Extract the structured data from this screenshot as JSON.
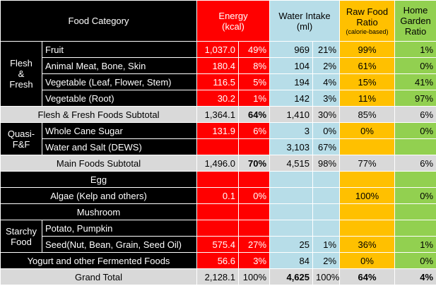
{
  "header": {
    "food_category": "Food Category",
    "energy": "Energy",
    "energy_unit": "(kcal)",
    "water": "Water Intake",
    "water_unit": "(ml)",
    "raw_food": "Raw Food",
    "ratio": "Ratio",
    "raw_note": "(calorie-based)",
    "home": "Home",
    "garden": "Garden",
    "garden_ratio": "Ratio"
  },
  "groups": {
    "flesh_line1": "Flesh",
    "flesh_line2": "&",
    "flesh_line3": "Fresh",
    "quasi_line1": "Quasi-",
    "quasi_line2": "F&F",
    "starchy_line1": "Starchy",
    "starchy_line2": "Food"
  },
  "rows": {
    "fruit": {
      "label": "Fruit",
      "energy": "1,037.0",
      "energy_pct": "49%",
      "water": "969",
      "water_pct": "21%",
      "raw": "99%",
      "garden": "1%"
    },
    "meat": {
      "label": "Animal Meat, Bone, Skin",
      "energy": "180.4",
      "energy_pct": "8%",
      "water": "104",
      "water_pct": "2%",
      "raw": "61%",
      "garden": "0%"
    },
    "veg_leaf": {
      "label": "Vegetable (Leaf, Flower, Stem)",
      "energy": "116.5",
      "energy_pct": "5%",
      "water": "194",
      "water_pct": "4%",
      "raw": "15%",
      "garden": "41%"
    },
    "veg_root": {
      "label": "Vegetable (Root)",
      "energy": "30.2",
      "energy_pct": "1%",
      "water": "142",
      "water_pct": "3%",
      "raw": "11%",
      "garden": "97%"
    },
    "flesh_subtotal": {
      "label": "Flesh & Fresh Foods Subtotal",
      "energy": "1,364.1",
      "energy_pct": "64%",
      "water": "1,410",
      "water_pct": "30%",
      "raw": "85%",
      "garden": "6%"
    },
    "sugar": {
      "label": "Whole Cane Sugar",
      "energy": "131.9",
      "energy_pct": "6%",
      "water": "3",
      "water_pct": "0%",
      "raw": "0%",
      "garden": "0%"
    },
    "water_salt": {
      "label": "Water and Salt (DEWS)",
      "water": "3,103",
      "water_pct": "67%"
    },
    "main_subtotal": {
      "label": "Main Foods Subtotal",
      "energy": "1,496.0",
      "energy_pct": "70%",
      "water": "4,515",
      "water_pct": "98%",
      "raw": "77%",
      "garden": "6%"
    },
    "egg": {
      "label": "Egg"
    },
    "algae": {
      "label": "Algae (Kelp and others)",
      "energy": "0.1",
      "energy_pct": "0%",
      "raw": "100%",
      "garden": "0%"
    },
    "mushroom": {
      "label": "Mushroom"
    },
    "potato": {
      "label": "Potato, Pumpkin"
    },
    "seed": {
      "label": "Seed(Nut, Bean, Grain, Seed Oil)",
      "energy": "575.4",
      "energy_pct": "27%",
      "water": "25",
      "water_pct": "1%",
      "raw": "36%",
      "garden": "1%"
    },
    "yogurt": {
      "label": "Yogurt and other Fermented Foods",
      "energy": "56.6",
      "energy_pct": "3%",
      "water": "84",
      "water_pct": "2%",
      "raw": "0%",
      "garden": "0%"
    },
    "grand_total": {
      "label": "Grand Total",
      "energy": "2,128.1",
      "energy_pct": "100%",
      "water": "4,625",
      "water_pct": "100%",
      "raw": "64%",
      "garden": "4%"
    }
  },
  "colors": {
    "category": "#000000",
    "energy": "#ff0000",
    "water": "#b7dde8",
    "raw_food": "#ffc000",
    "garden": "#92d050",
    "subtotal": "#d9d9d9"
  }
}
